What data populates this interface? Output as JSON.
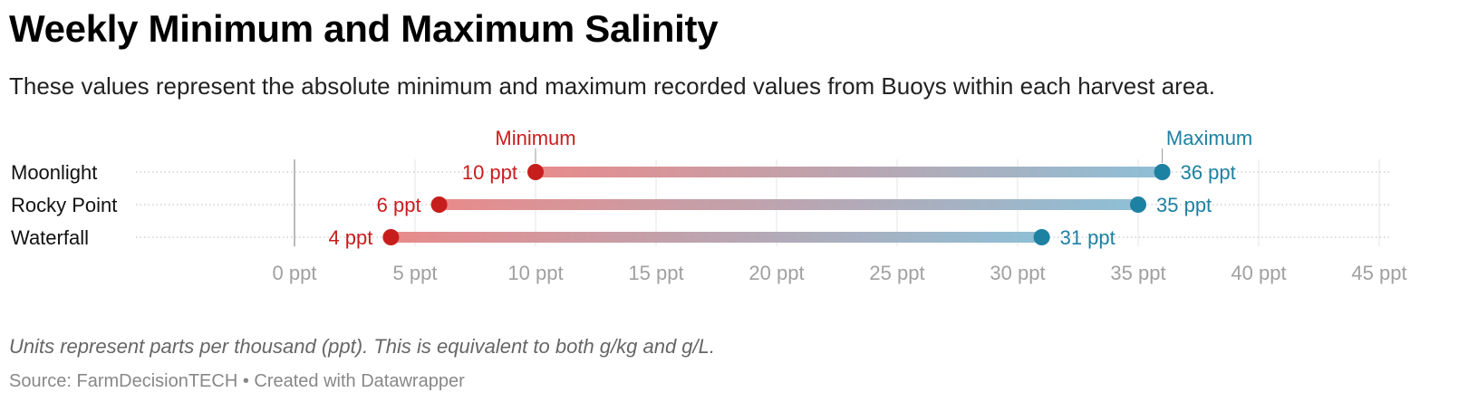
{
  "title": "Weekly Minimum and Maximum Salinity",
  "subtitle": "These values represent the absolute minimum and maximum recorded values from Buoys within each harvest area.",
  "note": "Units represent parts per thousand (ppt). This is equivalent to both g/kg and g/L.",
  "source": "Source: FarmDecisionTECH • Created with Datawrapper",
  "colors": {
    "minimum": "#c71e1d",
    "maximum": "#1d81a2",
    "bar_min": "#e88b8b",
    "bar_max": "#8ebfd6"
  },
  "chart_data": {
    "type": "range-plot",
    "categories": [
      "Moonlight",
      "Rocky Point",
      "Waterfall"
    ],
    "series": [
      {
        "name": "Minimum",
        "values": [
          10,
          6,
          4
        ],
        "labels": [
          "10 ppt",
          "6 ppt",
          "4 ppt"
        ]
      },
      {
        "name": "Maximum",
        "values": [
          36,
          35,
          31
        ],
        "labels": [
          "36 ppt",
          "35 ppt",
          "31 ppt"
        ]
      }
    ],
    "xlim": [
      0,
      45
    ],
    "ticks": [
      0,
      5,
      10,
      15,
      20,
      25,
      30,
      35,
      40,
      45
    ],
    "tick_labels": [
      "0 ppt",
      "5 ppt",
      "10 ppt",
      "15 ppt",
      "20 ppt",
      "25 ppt",
      "30 ppt",
      "35 ppt",
      "40 ppt",
      "45 ppt"
    ],
    "grid": true
  }
}
